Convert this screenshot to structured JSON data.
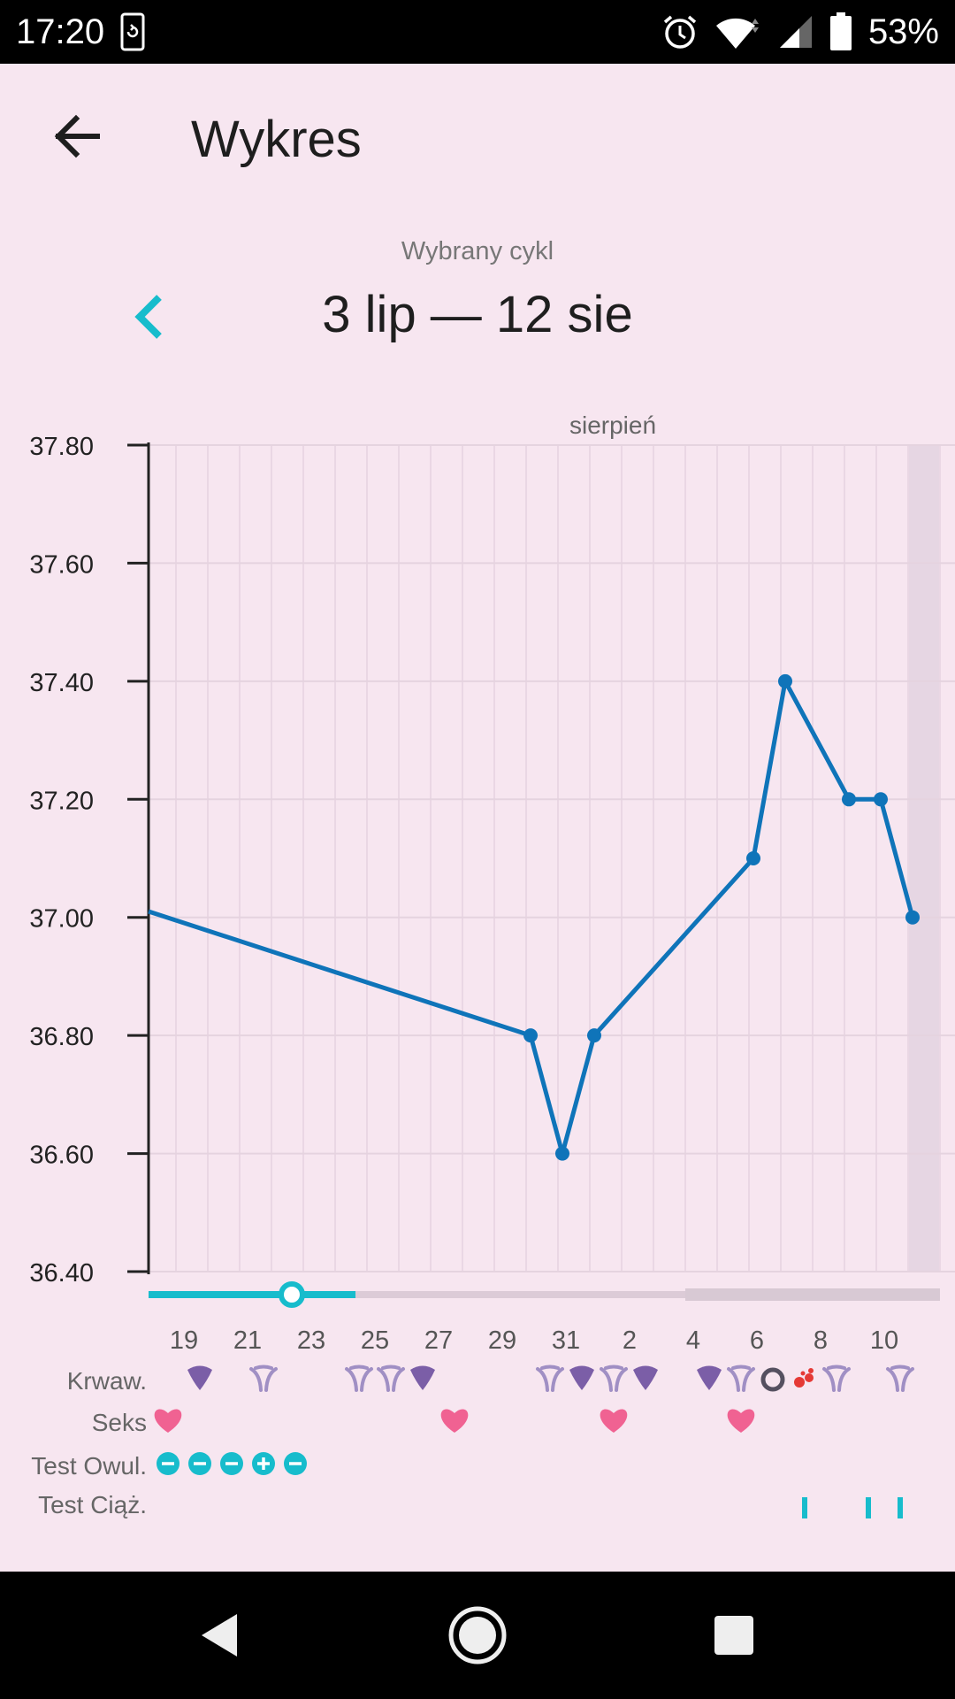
{
  "status_bar": {
    "time": "17:20",
    "battery": "53%",
    "icons": [
      "sync-icon",
      "alarm-icon",
      "wifi-icon",
      "signal-icon",
      "battery-icon"
    ]
  },
  "header": {
    "title": "Wykres",
    "back_icon": "arrow-left-icon"
  },
  "cycle": {
    "caption": "Wybrany cykl",
    "range": "3 lip — 12 sie",
    "prev_icon": "chevron-left-icon"
  },
  "colors": {
    "line": "#0f74b9",
    "accent": "#17bccc",
    "bleeding": "#7b5ea7",
    "bleeding_light": "#a08fc4",
    "heart": "#f06292",
    "spotting": "#e53935",
    "background": "#f7e6f0"
  },
  "chart_data": {
    "type": "line",
    "month_label": "sierpień",
    "x_start_day": 18,
    "x_end_day": 42,
    "ylim": [
      36.4,
      37.8
    ],
    "y_ticks": [
      "37.80",
      "37.60",
      "37.40",
      "37.20",
      "37.00",
      "36.80",
      "36.60",
      "36.40"
    ],
    "x_ticks": [
      {
        "day": 19,
        "label": "19"
      },
      {
        "day": 21,
        "label": "21"
      },
      {
        "day": 23,
        "label": "23"
      },
      {
        "day": 25,
        "label": "25"
      },
      {
        "day": 27,
        "label": "27"
      },
      {
        "day": 29,
        "label": "29"
      },
      {
        "day": 31,
        "label": "31"
      },
      {
        "day": 33,
        "label": "2"
      },
      {
        "day": 35,
        "label": "4"
      },
      {
        "day": 37,
        "label": "6"
      },
      {
        "day": 39,
        "label": "8"
      },
      {
        "day": 41,
        "label": "10"
      }
    ],
    "series": [
      {
        "points": [
          {
            "day": 30,
            "value": 36.8
          },
          {
            "day": 31,
            "value": 36.6
          },
          {
            "day": 32,
            "value": 36.8
          },
          {
            "day": 37,
            "value": 37.1
          },
          {
            "day": 38,
            "value": 37.4
          },
          {
            "day": 40,
            "value": 37.2
          },
          {
            "day": 41,
            "value": 37.2
          },
          {
            "day": 42,
            "value": 37.0
          }
        ],
        "incoming_value": 37.01
      }
    ],
    "highlight_day": 42,
    "slider": {
      "value_day": 22.5,
      "range_end_day": 24.5,
      "inactive_start_day": 34.5
    }
  },
  "rows": {
    "bleeding": {
      "label": "Krwaw.",
      "entries": [
        {
          "day": 19.5,
          "kind": "heavy"
        },
        {
          "day": 21.5,
          "kind": "light"
        },
        {
          "day": 24.5,
          "kind": "light"
        },
        {
          "day": 25.5,
          "kind": "light"
        },
        {
          "day": 26.5,
          "kind": "heavy"
        },
        {
          "day": 30.5,
          "kind": "light"
        },
        {
          "day": 31.5,
          "kind": "heavy"
        },
        {
          "day": 32.5,
          "kind": "light"
        },
        {
          "day": 33.5,
          "kind": "heavy"
        },
        {
          "day": 35.5,
          "kind": "heavy"
        },
        {
          "day": 36.5,
          "kind": "light"
        },
        {
          "day": 37.5,
          "kind": "ring"
        },
        {
          "day": 38.5,
          "kind": "spotting"
        },
        {
          "day": 39.5,
          "kind": "light"
        },
        {
          "day": 41.5,
          "kind": "light"
        }
      ]
    },
    "sex": {
      "label": "Seks",
      "days": [
        18.5,
        27.5,
        32.5,
        36.5
      ]
    },
    "ovulation_test": {
      "label": "Test Owul.",
      "entries": [
        {
          "day": 18.5,
          "result": "negative"
        },
        {
          "day": 19.5,
          "result": "negative"
        },
        {
          "day": 20.5,
          "result": "negative"
        },
        {
          "day": 21.5,
          "result": "positive"
        },
        {
          "day": 22.5,
          "result": "negative"
        }
      ]
    },
    "pregnancy_test": {
      "label": "Test Ciąż.",
      "days": [
        38.5,
        40.5,
        41.5
      ]
    }
  },
  "nav_bar": {
    "icons": [
      "nav-back-icon",
      "nav-home-icon",
      "nav-recents-icon"
    ]
  }
}
